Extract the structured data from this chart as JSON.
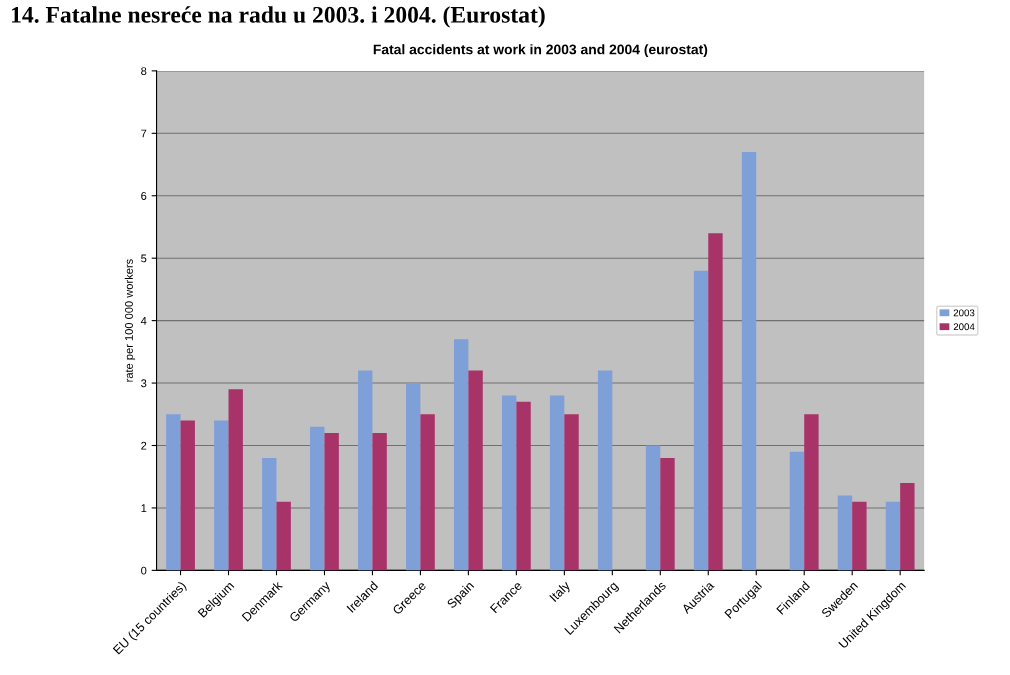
{
  "chart_data": {
    "type": "bar",
    "title": "Fatal accidents at work in 2003 and 2004 (eurostat)",
    "annotations": [
      "14. Fatalne nesreće na radu u 2003. i 2004. (Eurostat)"
    ],
    "ylabel": "rate per 100 000 workers",
    "categories": [
      "EU (15 countries)",
      "Belgium",
      "Denmark",
      "Germany",
      "Ireland",
      "Greece",
      "Spain",
      "France",
      "Italy",
      "Luxembourg",
      "Netherlands",
      "Austria",
      "Portugal",
      "Finland",
      "Sweden",
      "United Kingdom"
    ],
    "series": [
      {
        "name": "2003",
        "color": "#7f9fd9",
        "values": [
          2.5,
          2.4,
          1.8,
          2.3,
          3.2,
          3.0,
          3.7,
          2.8,
          2.8,
          3.2,
          2.0,
          4.8,
          6.7,
          1.9,
          1.2,
          1.1
        ]
      },
      {
        "name": "2004",
        "color": "#a83368",
        "values": [
          2.4,
          2.9,
          1.1,
          2.2,
          2.2,
          2.5,
          3.2,
          2.7,
          2.5,
          null,
          1.8,
          5.4,
          null,
          2.5,
          1.1,
          1.4
        ]
      }
    ],
    "ylim": [
      0,
      8
    ],
    "yticks": [
      0,
      1,
      2,
      3,
      4,
      5,
      6,
      7,
      8
    ],
    "grid": "y",
    "legend": "right"
  }
}
